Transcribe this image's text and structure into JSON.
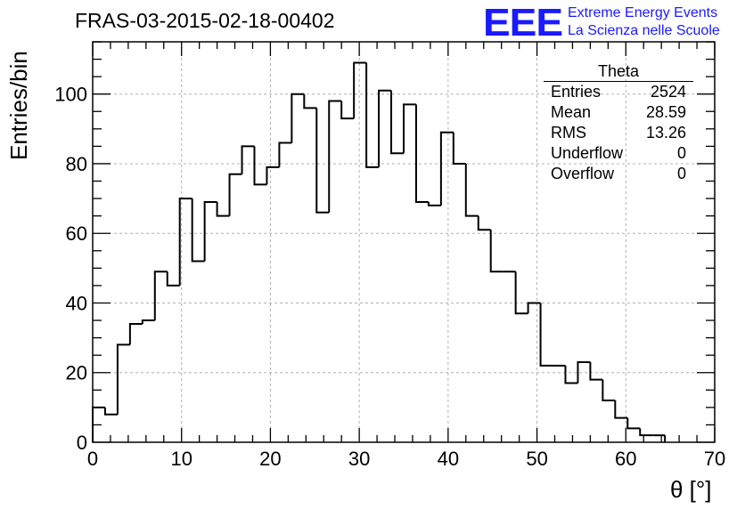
{
  "header": {
    "title": "FRAS-03-2015-02-18-00402",
    "logo_text": "EEE",
    "logo_line1": "Extreme Energy Events",
    "logo_line2": "La Scienza nelle Scuole"
  },
  "stats_box": {
    "name": "Theta",
    "rows": [
      {
        "label": "Entries",
        "value": "2524"
      },
      {
        "label": "Mean",
        "value": "28.59"
      },
      {
        "label": "RMS",
        "value": "13.26"
      },
      {
        "label": "Underflow",
        "value": "0"
      },
      {
        "label": "Overflow",
        "value": "0"
      }
    ]
  },
  "chart_data": {
    "type": "bar",
    "style": "step-histogram",
    "title": "FRAS-03-2015-02-18-00402",
    "xlabel": "θ [°]",
    "ylabel": "Entries/bin",
    "xlim": [
      0,
      70
    ],
    "ylim": [
      0,
      115
    ],
    "grid": true,
    "bin_width": 1.4,
    "bin_edges_start": 0,
    "values": [
      10,
      8,
      28,
      34,
      35,
      49,
      45,
      70,
      52,
      69,
      65,
      77,
      85,
      74,
      79,
      86,
      100,
      96,
      66,
      98,
      93,
      109,
      79,
      101,
      83,
      97,
      69,
      68,
      89,
      80,
      65,
      61,
      49,
      49,
      37,
      40,
      22,
      22,
      17,
      23,
      18,
      12,
      7,
      4,
      2,
      2
    ],
    "x_ticks": [
      0,
      10,
      20,
      30,
      40,
      50,
      60,
      70
    ],
    "y_ticks": [
      0,
      20,
      40,
      60,
      80,
      100
    ],
    "colors": {
      "line": "#000000",
      "grid": "#b0b0b0",
      "logo": "#1a1aff"
    }
  }
}
